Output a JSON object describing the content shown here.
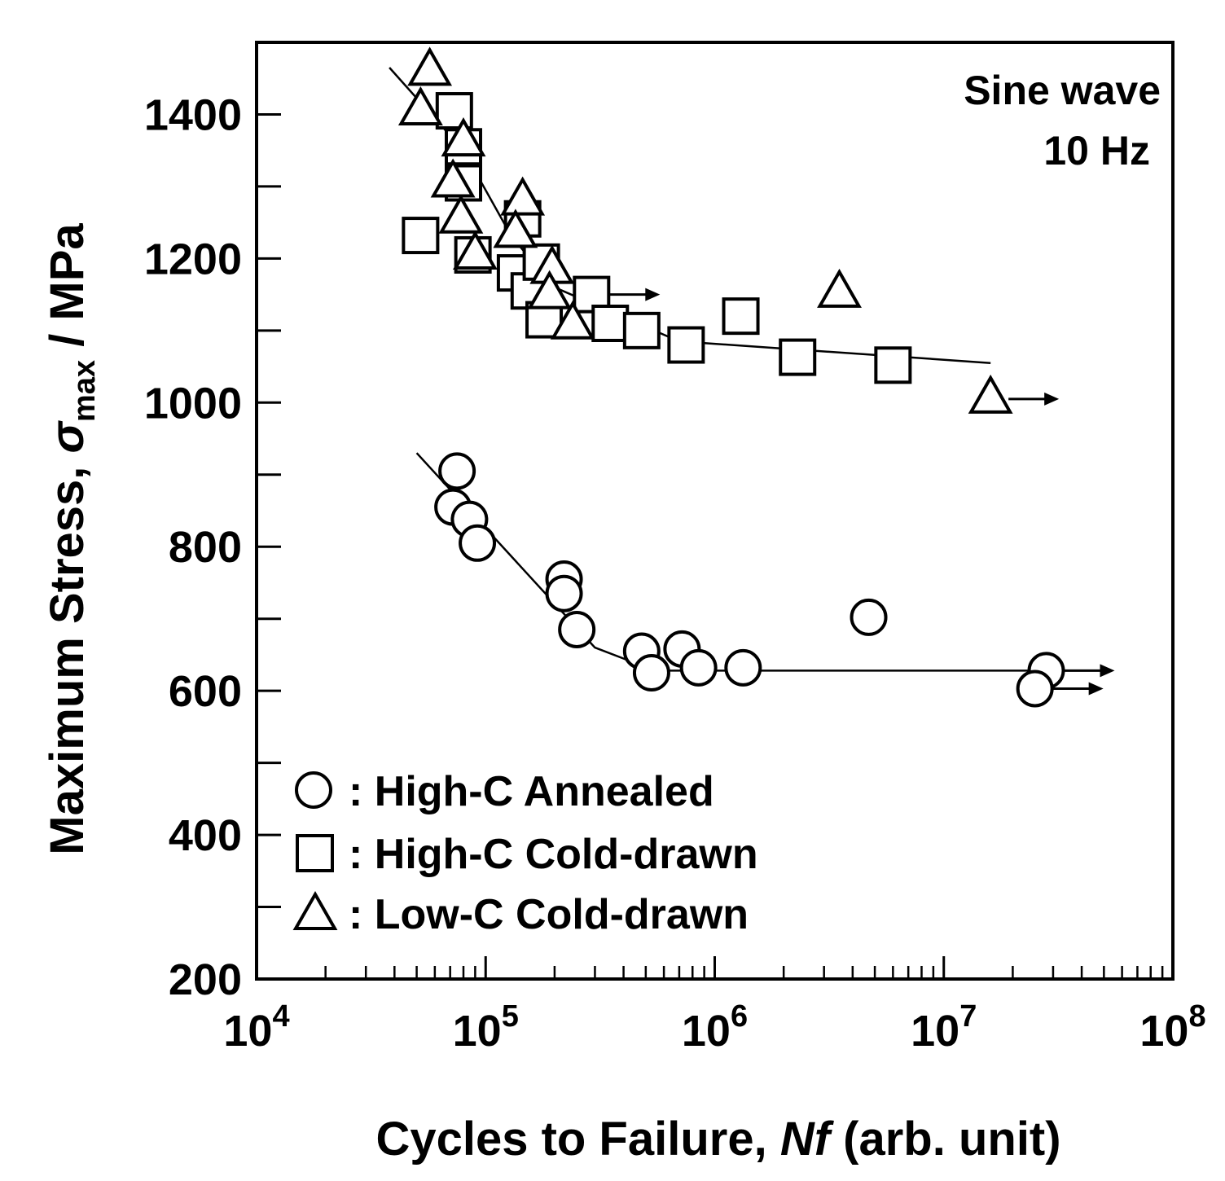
{
  "chart_data": {
    "type": "scatter",
    "title": "",
    "xlabel": {
      "prefix": "Cycles to Failure, ",
      "italic": "Nf",
      "suffix": " (arb. unit)"
    },
    "ylabel": {
      "prefix": "Maximum Stress, ",
      "symbol": "σ",
      "subscript": "max",
      "suffix": " / MPa"
    },
    "x_scale": "log",
    "xlim": [
      10000,
      100000000
    ],
    "ylim": [
      200,
      1500
    ],
    "x_ticks": [
      {
        "value": 10000,
        "base": "10",
        "exp": "4"
      },
      {
        "value": 100000,
        "base": "10",
        "exp": "5"
      },
      {
        "value": 1000000,
        "base": "10",
        "exp": "6"
      },
      {
        "value": 10000000,
        "base": "10",
        "exp": "7"
      },
      {
        "value": 100000000,
        "base": "10",
        "exp": "8"
      }
    ],
    "y_ticks": [
      200,
      400,
      600,
      800,
      1000,
      1200,
      1400
    ],
    "annotation": [
      "Sine wave",
      "10 Hz"
    ],
    "legend_position": "bottom-left",
    "series": [
      {
        "name": "High-C Annealed",
        "legend_label": ": High-C Annealed",
        "marker": "circle",
        "points": [
          [
            75000,
            905
          ],
          [
            72000,
            855
          ],
          [
            85000,
            838
          ],
          [
            92000,
            805
          ],
          [
            220000,
            755
          ],
          [
            220000,
            735
          ],
          [
            250000,
            685
          ],
          [
            480000,
            655
          ],
          [
            530000,
            625
          ],
          [
            720000,
            658
          ],
          [
            850000,
            632
          ],
          [
            1330000,
            632
          ],
          [
            4700000,
            702
          ],
          [
            28000000,
            628
          ],
          [
            25000000,
            603
          ]
        ],
        "runouts": [
          [
            28000000,
            628
          ],
          [
            25000000,
            603
          ]
        ],
        "trend": [
          [
            50000,
            930
          ],
          [
            300000,
            660
          ],
          [
            550000,
            628
          ],
          [
            28000000,
            628
          ]
        ]
      },
      {
        "name": "High-C Cold-drawn",
        "legend_label": ": High-C Cold-drawn",
        "marker": "square",
        "points": [
          [
            73000,
            1405
          ],
          [
            80000,
            1355
          ],
          [
            80000,
            1305
          ],
          [
            52000,
            1232
          ],
          [
            88000,
            1205
          ],
          [
            145000,
            1255
          ],
          [
            135000,
            1180
          ],
          [
            155000,
            1155
          ],
          [
            175000,
            1195
          ],
          [
            180000,
            1115
          ],
          [
            290000,
            1150
          ],
          [
            350000,
            1110
          ],
          [
            480000,
            1100
          ],
          [
            750000,
            1080
          ],
          [
            1300000,
            1120
          ],
          [
            2300000,
            1063
          ],
          [
            6000000,
            1052
          ]
        ],
        "runouts": [
          [
            290000,
            1150
          ]
        ],
        "trend": [
          [
            38000,
            1465
          ],
          [
            80000,
            1350
          ],
          [
            130000,
            1230
          ],
          [
            200000,
            1160
          ],
          [
            700000,
            1085
          ],
          [
            16000000,
            1055
          ]
        ]
      },
      {
        "name": "Low-C Cold-drawn",
        "legend_label": ": Low-C Cold-drawn",
        "marker": "triangle",
        "points": [
          [
            57000,
            1460
          ],
          [
            52000,
            1405
          ],
          [
            80000,
            1362
          ],
          [
            72000,
            1305
          ],
          [
            78000,
            1255
          ],
          [
            90000,
            1205
          ],
          [
            145000,
            1280
          ],
          [
            135000,
            1235
          ],
          [
            195000,
            1185
          ],
          [
            190000,
            1150
          ],
          [
            240000,
            1108
          ],
          [
            3500000,
            1152
          ],
          [
            16000000,
            1005
          ]
        ],
        "runouts": [
          [
            16000000,
            1005
          ]
        ]
      }
    ]
  }
}
